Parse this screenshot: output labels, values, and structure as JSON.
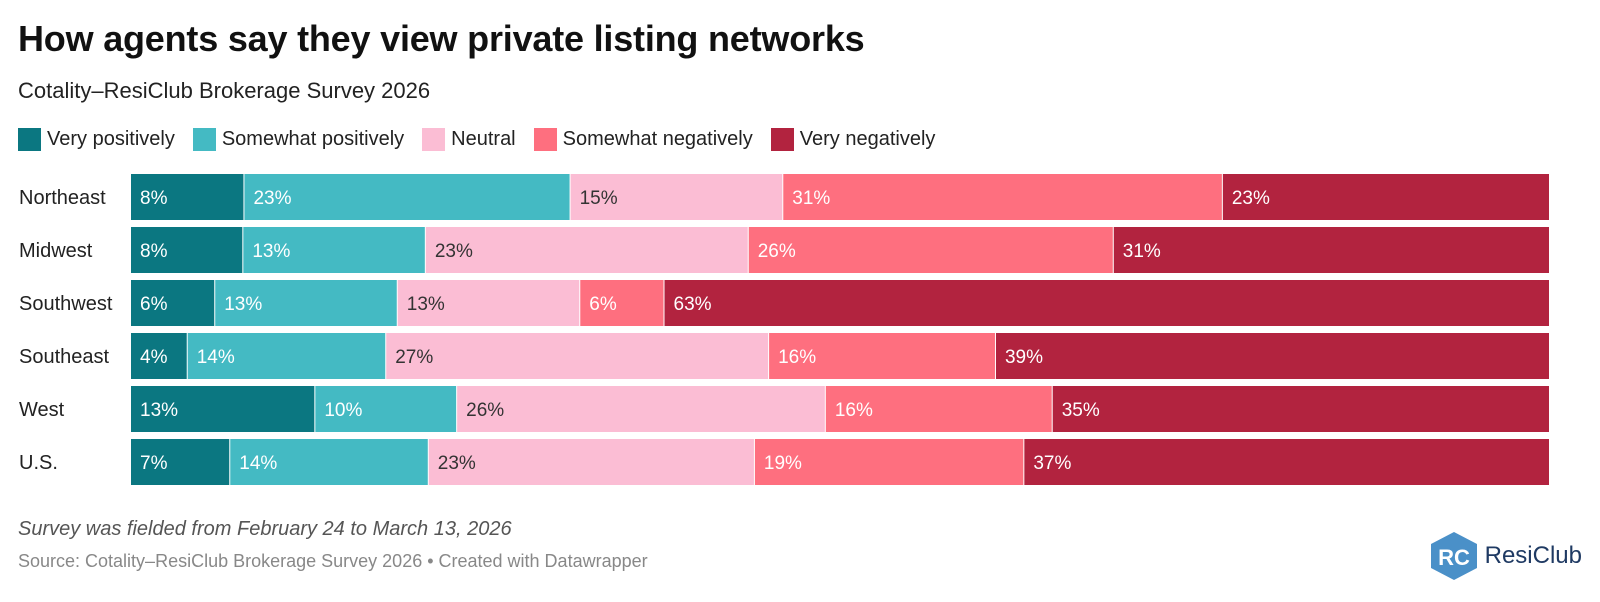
{
  "header": {
    "title": "How agents say they view private listing networks",
    "subtitle": "Cotality–ResiClub Brokerage Survey 2026"
  },
  "legend": {
    "items": [
      {
        "label": "Very positively",
        "color": "#0b7781"
      },
      {
        "label": "Somewhat positively",
        "color": "#44bac3"
      },
      {
        "label": "Neutral",
        "color": "#fbbdd4"
      },
      {
        "label": "Somewhat negatively",
        "color": "#fe6f7f"
      },
      {
        "label": "Very negatively",
        "color": "#b2233f"
      }
    ]
  },
  "chart_data": {
    "type": "bar",
    "orientation": "horizontal",
    "stacked": true,
    "title": "How agents say they view private listing networks",
    "subtitle": "Cotality–ResiClub Brokerage Survey 2026",
    "categories": [
      "Northeast",
      "Midwest",
      "Southwest",
      "Southeast",
      "West",
      "U.S."
    ],
    "series": [
      {
        "name": "Very positively",
        "color": "#0b7781",
        "values": [
          8,
          8,
          6,
          4,
          13,
          7
        ]
      },
      {
        "name": "Somewhat positively",
        "color": "#44bac3",
        "values": [
          23,
          13,
          13,
          14,
          10,
          14
        ]
      },
      {
        "name": "Neutral",
        "color": "#fbbdd4",
        "values": [
          15,
          23,
          13,
          27,
          26,
          23
        ]
      },
      {
        "name": "Somewhat negatively",
        "color": "#fe6f7f",
        "values": [
          31,
          26,
          6,
          16,
          16,
          19
        ]
      },
      {
        "name": "Very negatively",
        "color": "#b2233f",
        "values": [
          23,
          31,
          63,
          39,
          35,
          37
        ]
      }
    ],
    "value_suffix": "%",
    "legend_position": "top-left",
    "grid": false
  },
  "label_colors": {
    "light_text": "#ffffff",
    "dark_text": "#333333"
  },
  "footer": {
    "note": "Survey was fielded from February 24 to March 13, 2026",
    "source": "Source: Cotality–ResiClub Brokerage Survey 2026 • Created with Datawrapper"
  },
  "logo": {
    "text": "ResiClub",
    "letters": "RC",
    "color": "#2e7fb8"
  }
}
